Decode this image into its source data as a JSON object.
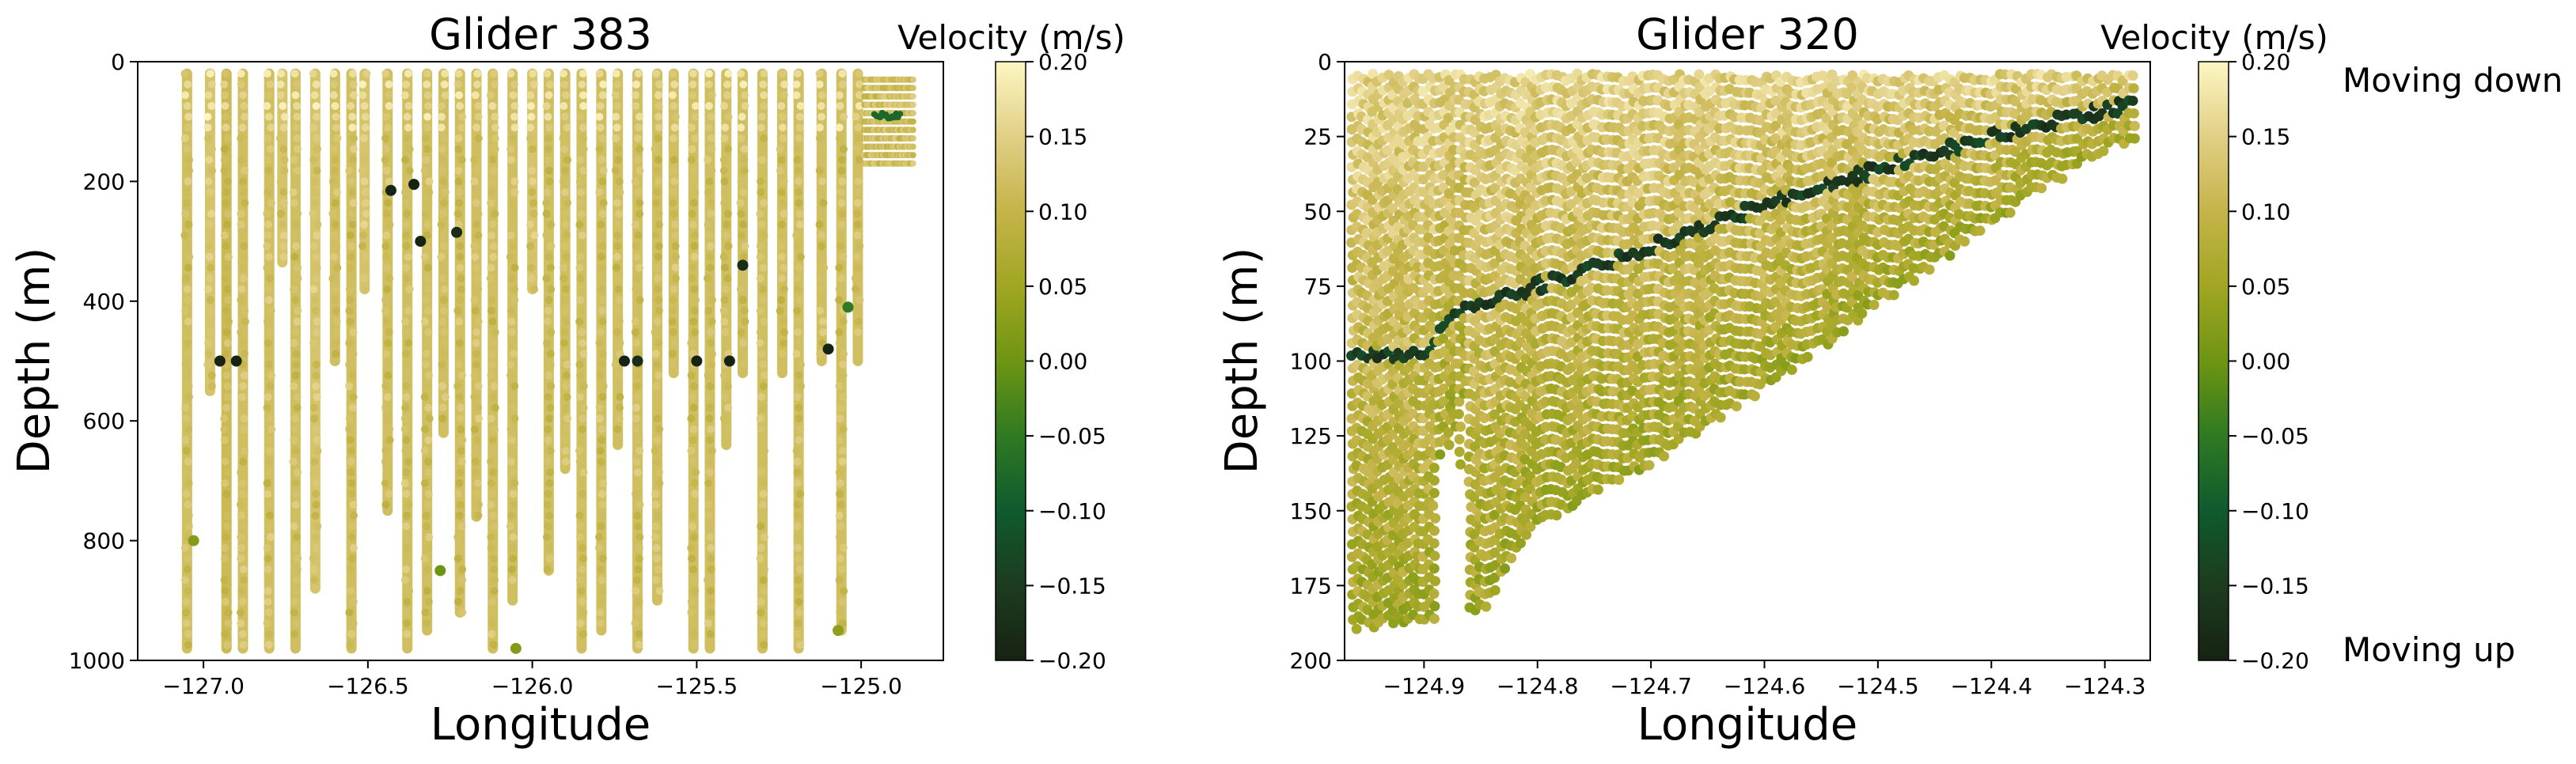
{
  "figure": {
    "background": "#ffffff"
  },
  "colormap": {
    "name": "speed",
    "stops": [
      {
        "v": -0.2,
        "color": "#172313"
      },
      {
        "v": -0.15,
        "color": "#1c3c1f"
      },
      {
        "v": -0.1,
        "color": "#0f5a2e"
      },
      {
        "v": -0.05,
        "color": "#2f7a22"
      },
      {
        "v": 0.0,
        "color": "#6e9512"
      },
      {
        "v": 0.05,
        "color": "#a1a622"
      },
      {
        "v": 0.1,
        "color": "#c5b449"
      },
      {
        "v": 0.15,
        "color": "#e1cf85"
      },
      {
        "v": 0.2,
        "color": "#fdf6c3"
      }
    ]
  },
  "panels": [
    {
      "title": "Glider 383",
      "xlabel": "Longitude",
      "ylabel": "Depth (m)",
      "x_ticks": [
        "−127.0",
        "−126.5",
        "−126.0",
        "−125.5",
        "−125.0"
      ],
      "y_ticks": [
        "0",
        "200",
        "400",
        "600",
        "800",
        "1000"
      ],
      "colorbar_title": "Velocity (m/s)",
      "colorbar_ticks": [
        "0.20",
        "0.15",
        "0.10",
        "0.05",
        "0.00",
        "−0.05",
        "−0.10",
        "−0.15",
        "−0.20"
      ]
    },
    {
      "title": "Glider 320",
      "xlabel": "Longitude",
      "ylabel": "Depth (m)",
      "x_ticks": [
        "−124.9",
        "−124.8",
        "−124.7",
        "−124.6",
        "−124.5",
        "−124.4",
        "−124.3"
      ],
      "y_ticks": [
        "0",
        "25",
        "50",
        "75",
        "100",
        "125",
        "150",
        "175",
        "200"
      ],
      "colorbar_title": "Velocity (m/s)",
      "colorbar_ticks": [
        "0.20",
        "0.15",
        "0.10",
        "0.05",
        "0.00",
        "−0.05",
        "−0.10",
        "−0.15",
        "−0.20"
      ]
    }
  ],
  "annotations": {
    "top": "Moving down",
    "bottom": "Moving up"
  },
  "chart_data": [
    {
      "type": "scatter",
      "title": "Glider 383",
      "xlabel": "Longitude",
      "ylabel": "Depth (m)",
      "xlim": [
        -127.2,
        -124.75
      ],
      "ylim": [
        1000,
        0
      ],
      "y_inverted": true,
      "color_variable": "Velocity (m/s)",
      "clim": [
        -0.2,
        0.2
      ],
      "grid": false,
      "profiles": [
        {
          "lon": -127.05,
          "depth_range": [
            20,
            980
          ],
          "mean_v": 0.12
        },
        {
          "lon": -126.98,
          "depth_range": [
            20,
            550
          ],
          "mean_v": 0.13
        },
        {
          "lon": -126.93,
          "depth_range": [
            20,
            980
          ],
          "mean_v": 0.11
        },
        {
          "lon": -126.88,
          "depth_range": [
            20,
            980
          ],
          "mean_v": 0.12
        },
        {
          "lon": -126.8,
          "depth_range": [
            20,
            980
          ],
          "mean_v": 0.12
        },
        {
          "lon": -126.76,
          "depth_range": [
            20,
            335
          ],
          "mean_v": 0.13
        },
        {
          "lon": -126.72,
          "depth_range": [
            20,
            980
          ],
          "mean_v": 0.12
        },
        {
          "lon": -126.66,
          "depth_range": [
            20,
            880
          ],
          "mean_v": 0.13
        },
        {
          "lon": -126.6,
          "depth_range": [
            20,
            500
          ],
          "mean_v": 0.12
        },
        {
          "lon": -126.55,
          "depth_range": [
            20,
            980
          ],
          "mean_v": 0.12
        },
        {
          "lon": -126.51,
          "depth_range": [
            20,
            380
          ],
          "mean_v": 0.13
        },
        {
          "lon": -126.44,
          "depth_range": [
            20,
            750
          ],
          "mean_v": 0.12
        },
        {
          "lon": -126.38,
          "depth_range": [
            20,
            980
          ],
          "mean_v": 0.12
        },
        {
          "lon": -126.32,
          "depth_range": [
            20,
            950
          ],
          "mean_v": 0.12
        },
        {
          "lon": -126.27,
          "depth_range": [
            20,
            620
          ],
          "mean_v": 0.12
        },
        {
          "lon": -126.22,
          "depth_range": [
            20,
            920
          ],
          "mean_v": 0.12
        },
        {
          "lon": -126.17,
          "depth_range": [
            20,
            760
          ],
          "mean_v": 0.12
        },
        {
          "lon": -126.12,
          "depth_range": [
            20,
            980
          ],
          "mean_v": 0.12
        },
        {
          "lon": -126.06,
          "depth_range": [
            20,
            900
          ],
          "mean_v": 0.12
        },
        {
          "lon": -126.0,
          "depth_range": [
            20,
            380
          ],
          "mean_v": 0.13
        },
        {
          "lon": -125.95,
          "depth_range": [
            20,
            850
          ],
          "mean_v": 0.12
        },
        {
          "lon": -125.9,
          "depth_range": [
            20,
            680
          ],
          "mean_v": 0.12
        },
        {
          "lon": -125.85,
          "depth_range": [
            20,
            980
          ],
          "mean_v": 0.12
        },
        {
          "lon": -125.79,
          "depth_range": [
            20,
            950
          ],
          "mean_v": 0.12
        },
        {
          "lon": -125.74,
          "depth_range": [
            20,
            640
          ],
          "mean_v": 0.12
        },
        {
          "lon": -125.68,
          "depth_range": [
            20,
            980
          ],
          "mean_v": 0.12
        },
        {
          "lon": -125.62,
          "depth_range": [
            20,
            900
          ],
          "mean_v": 0.12
        },
        {
          "lon": -125.57,
          "depth_range": [
            20,
            520
          ],
          "mean_v": 0.12
        },
        {
          "lon": -125.51,
          "depth_range": [
            20,
            980
          ],
          "mean_v": 0.12
        },
        {
          "lon": -125.46,
          "depth_range": [
            20,
            980
          ],
          "mean_v": 0.12
        },
        {
          "lon": -125.41,
          "depth_range": [
            20,
            640
          ],
          "mean_v": 0.12
        },
        {
          "lon": -125.36,
          "depth_range": [
            20,
            520
          ],
          "mean_v": 0.12
        },
        {
          "lon": -125.3,
          "depth_range": [
            20,
            980
          ],
          "mean_v": 0.12
        },
        {
          "lon": -125.24,
          "depth_range": [
            20,
            520
          ],
          "mean_v": 0.12
        },
        {
          "lon": -125.19,
          "depth_range": [
            20,
            980
          ],
          "mean_v": 0.12
        },
        {
          "lon": -125.12,
          "depth_range": [
            20,
            500
          ],
          "mean_v": 0.12
        },
        {
          "lon": -125.06,
          "depth_range": [
            20,
            950
          ],
          "mean_v": 0.12
        },
        {
          "lon": -125.01,
          "depth_range": [
            20,
            500
          ],
          "mean_v": 0.12
        }
      ],
      "marked_points": [
        {
          "lon": -126.34,
          "depth": 300,
          "v": -0.2
        },
        {
          "lon": -126.43,
          "depth": 215,
          "v": -0.2
        },
        {
          "lon": -126.36,
          "depth": 205,
          "v": -0.2
        },
        {
          "lon": -126.95,
          "depth": 500,
          "v": -0.2
        },
        {
          "lon": -126.9,
          "depth": 500,
          "v": -0.2
        },
        {
          "lon": -126.23,
          "depth": 285,
          "v": -0.18
        },
        {
          "lon": -125.72,
          "depth": 500,
          "v": -0.2
        },
        {
          "lon": -125.68,
          "depth": 500,
          "v": -0.18
        },
        {
          "lon": -125.5,
          "depth": 500,
          "v": -0.2
        },
        {
          "lon": -125.4,
          "depth": 500,
          "v": -0.2
        },
        {
          "lon": -125.36,
          "depth": 340,
          "v": -0.18
        },
        {
          "lon": -125.1,
          "depth": 480,
          "v": -0.2
        },
        {
          "lon": -125.04,
          "depth": 410,
          "v": -0.05
        },
        {
          "lon": -125.07,
          "depth": 950,
          "v": 0.03
        },
        {
          "lon": -127.03,
          "depth": 800,
          "v": 0.02
        },
        {
          "lon": -126.28,
          "depth": 850,
          "v": 0.0
        },
        {
          "lon": -126.05,
          "depth": 980,
          "v": 0.02
        }
      ],
      "shelf_feature": {
        "lon_range": [
          -124.96,
          -124.88
        ],
        "depth": 90,
        "v": -0.08
      }
    },
    {
      "type": "scatter",
      "title": "Glider 320",
      "xlabel": "Longitude",
      "ylabel": "Depth (m)",
      "xlim": [
        -124.97,
        -124.26
      ],
      "ylim": [
        200,
        0
      ],
      "y_inverted": true,
      "color_variable": "Velocity (m/s)",
      "clim": [
        -0.2,
        0.2
      ],
      "grid": false,
      "seafloor_depth": [
        {
          "lon": -124.96,
          "depth": 190
        },
        {
          "lon": -124.85,
          "depth": 185
        },
        {
          "lon": -124.8,
          "depth": 155
        },
        {
          "lon": -124.7,
          "depth": 135
        },
        {
          "lon": -124.6,
          "depth": 110
        },
        {
          "lon": -124.5,
          "depth": 82
        },
        {
          "lon": -124.4,
          "depth": 55
        },
        {
          "lon": -124.3,
          "depth": 30
        },
        {
          "lon": -124.27,
          "depth": 27
        }
      ],
      "dark_band": [
        {
          "lon": -124.96,
          "depth": 98
        },
        {
          "lon": -124.9,
          "depth": 98
        },
        {
          "lon": -124.88,
          "depth": 85
        },
        {
          "lon": -124.8,
          "depth": 75
        },
        {
          "lon": -124.7,
          "depth": 62
        },
        {
          "lon": -124.6,
          "depth": 48
        },
        {
          "lon": -124.5,
          "depth": 36
        },
        {
          "lon": -124.4,
          "depth": 25
        },
        {
          "lon": -124.3,
          "depth": 16
        },
        {
          "lon": -124.27,
          "depth": 14
        }
      ],
      "band_v": -0.15,
      "mean_v": 0.1
    }
  ]
}
